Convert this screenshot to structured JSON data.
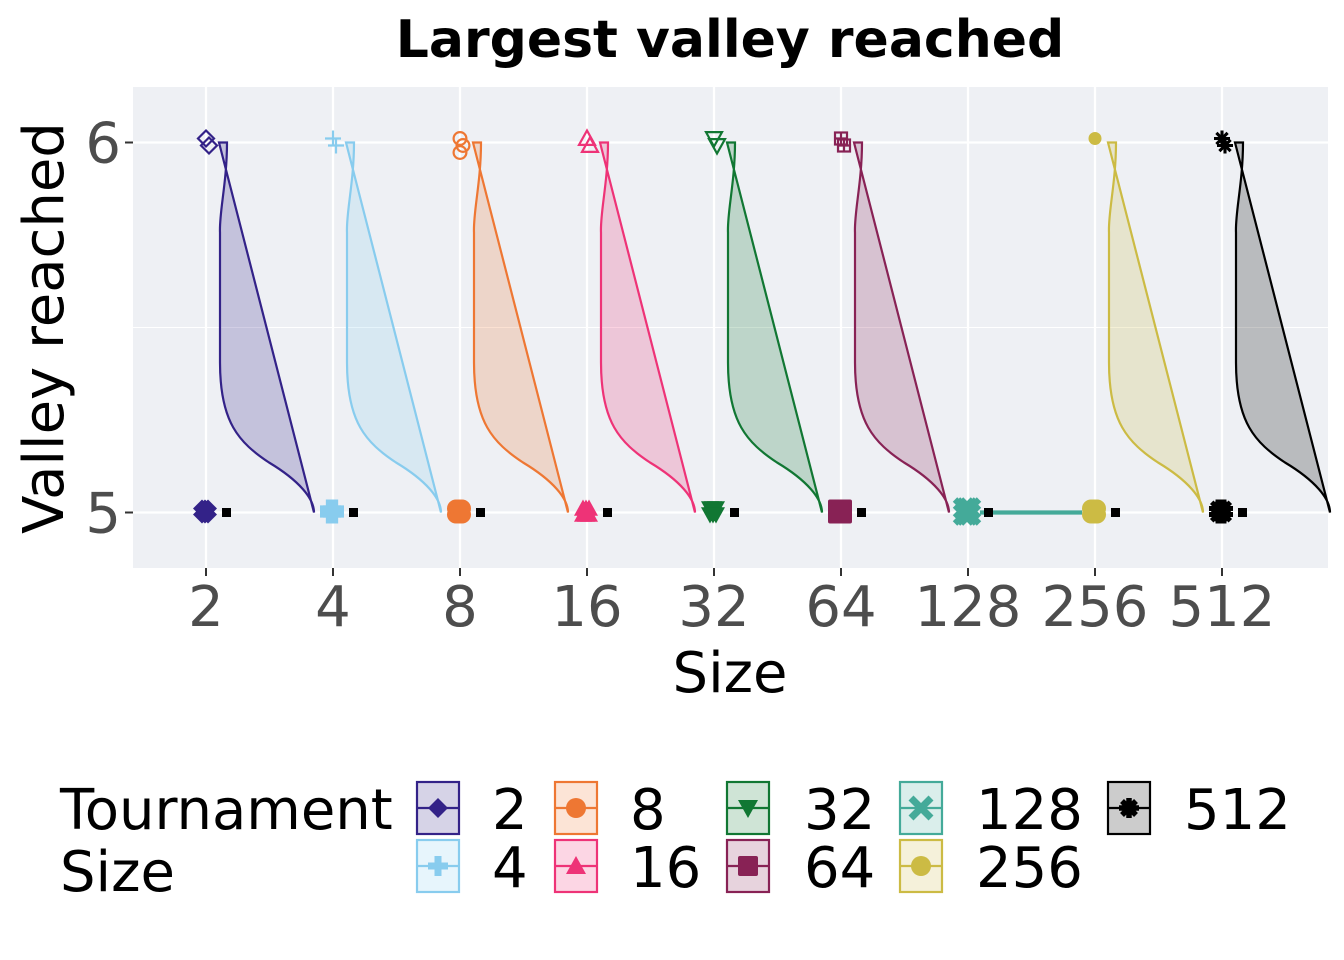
{
  "chart_data": {
    "type": "violin",
    "title": "Largest valley reached",
    "xlabel": "Size",
    "ylabel": "Valley reached",
    "categories": [
      "2",
      "4",
      "8",
      "16",
      "32",
      "64",
      "128",
      "256",
      "512"
    ],
    "yticks": [
      5,
      6
    ],
    "ylim": [
      4.85,
      6.15
    ],
    "grid": true,
    "legend": {
      "position": "bottom",
      "title_lines": [
        "Tournament",
        "Size"
      ],
      "entries": [
        "2",
        "8",
        "32",
        "128",
        "512",
        "4",
        "16",
        "64",
        "256"
      ]
    },
    "colors": {
      "2": "#332288",
      "4": "#88CCEE",
      "8": "#EE7733",
      "16": "#EE3377",
      "32": "#117733",
      "64": "#882255",
      "128": "#44AA99",
      "256": "#CCBB44",
      "512": "#000000"
    },
    "markers": {
      "2": "diamond",
      "4": "plus",
      "8": "circle-open",
      "16": "triangle-up",
      "32": "triangle-down",
      "64": "square-plus",
      "128": "x",
      "256": "circle",
      "512": "asterisk"
    },
    "series": [
      {
        "name": "2",
        "max_points": 2,
        "median": 5
      },
      {
        "name": "4",
        "max_points": 2,
        "median": 5
      },
      {
        "name": "8",
        "max_points": 3,
        "median": 5
      },
      {
        "name": "16",
        "max_points": 2,
        "median": 5
      },
      {
        "name": "32",
        "max_points": 2,
        "median": 5
      },
      {
        "name": "64",
        "max_points": 2,
        "median": 5
      },
      {
        "name": "128",
        "max_points": 0,
        "median": 5
      },
      {
        "name": "256",
        "max_points": 1,
        "median": 5
      },
      {
        "name": "512",
        "max_points": 2,
        "median": 5
      }
    ]
  }
}
